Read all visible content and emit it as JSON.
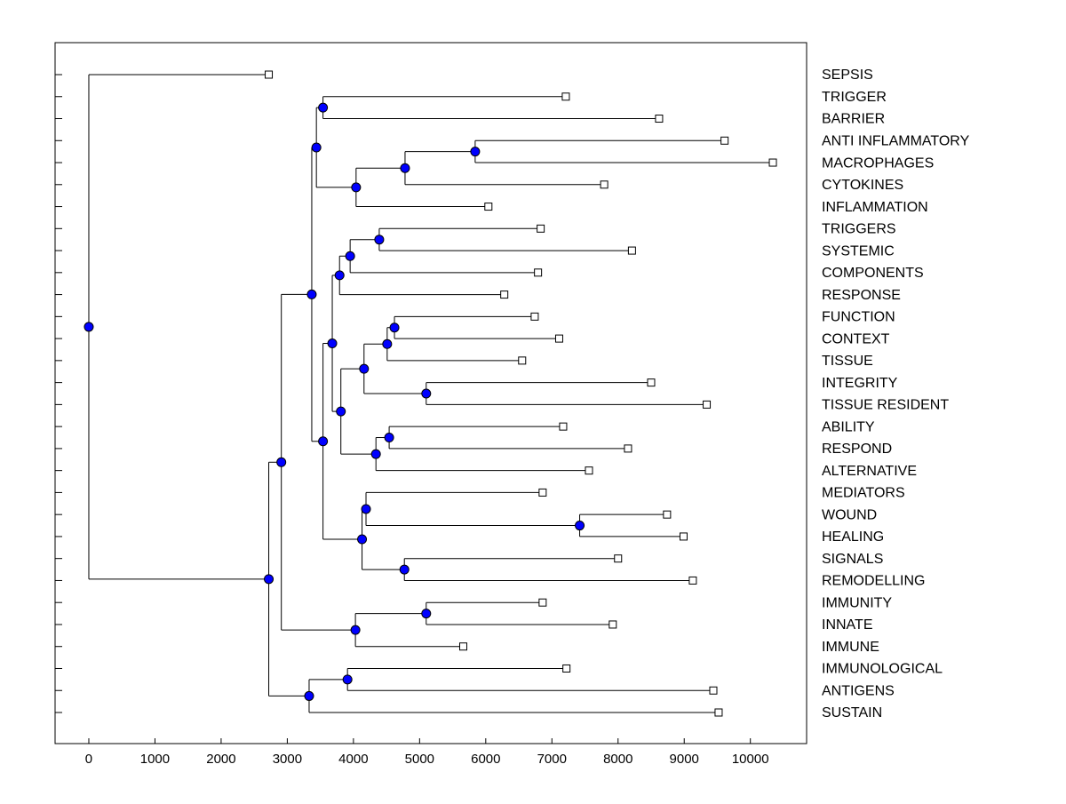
{
  "chart_data": {
    "type": "dendrogram",
    "xlim": [
      -510,
      10850
    ],
    "xticks": [
      0,
      1000,
      2000,
      3000,
      4000,
      5000,
      6000,
      7000,
      8000,
      9000,
      10000
    ],
    "node_color": "#0000ff",
    "leaf_color": "#ffffff",
    "tree": {
      "value": 0,
      "children": [
        {
          "label": "SEPSIS",
          "value": 2720
        },
        {
          "value": 2720,
          "children": [
            {
              "value": 2910,
              "children": [
                {
                  "value": 3370,
                  "children": [
                    {
                      "value": 3440,
                      "children": [
                        {
                          "value": 3540,
                          "children": [
                            {
                              "label": "TRIGGER",
                              "value": 7210
                            },
                            {
                              "label": "BARRIER",
                              "value": 8620
                            }
                          ]
                        },
                        {
                          "value": 4040,
                          "children": [
                            {
                              "value": 4780,
                              "children": [
                                {
                                  "value": 5840,
                                  "children": [
                                    {
                                      "label": "ANTI INFLAMMATORY",
                                      "value": 9610
                                    },
                                    {
                                      "label": "MACROPHAGES",
                                      "value": 10340
                                    }
                                  ]
                                },
                                {
                                  "label": "CYTOKINES",
                                  "value": 7790
                                }
                              ]
                            },
                            {
                              "label": "INFLAMMATION",
                              "value": 6040
                            }
                          ]
                        }
                      ]
                    },
                    {
                      "value": 3540,
                      "children": [
                        {
                          "value": 3680,
                          "children": [
                            {
                              "value": 3790,
                              "children": [
                                {
                                  "value": 3950,
                                  "children": [
                                    {
                                      "value": 4390,
                                      "children": [
                                        {
                                          "label": "TRIGGERS",
                                          "value": 6830
                                        },
                                        {
                                          "label": "SYSTEMIC",
                                          "value": 8210
                                        }
                                      ]
                                    },
                                    {
                                      "label": "COMPONENTS",
                                      "value": 6790
                                    }
                                  ]
                                },
                                {
                                  "label": "RESPONSE",
                                  "value": 6280
                                }
                              ]
                            },
                            {
                              "value": 3810,
                              "children": [
                                {
                                  "value": 4160,
                                  "children": [
                                    {
                                      "value": 4510,
                                      "children": [
                                        {
                                          "value": 4620,
                                          "children": [
                                            {
                                              "label": "FUNCTION",
                                              "value": 6740
                                            },
                                            {
                                              "label": "CONTEXT",
                                              "value": 7110
                                            }
                                          ]
                                        },
                                        {
                                          "label": "TISSUE",
                                          "value": 6550
                                        }
                                      ]
                                    },
                                    {
                                      "value": 5100,
                                      "children": [
                                        {
                                          "label": "INTEGRITY",
                                          "value": 8500
                                        },
                                        {
                                          "label": "TISSUE RESIDENT",
                                          "value": 9340
                                        }
                                      ]
                                    }
                                  ]
                                },
                                {
                                  "value": 4340,
                                  "children": [
                                    {
                                      "value": 4540,
                                      "children": [
                                        {
                                          "label": "ABILITY",
                                          "value": 7170
                                        },
                                        {
                                          "label": "RESPOND",
                                          "value": 8150
                                        }
                                      ]
                                    },
                                    {
                                      "label": "ALTERNATIVE",
                                      "value": 7560
                                    }
                                  ]
                                }
                              ]
                            }
                          ]
                        },
                        {
                          "value": 4130,
                          "children": [
                            {
                              "value": 4190,
                              "children": [
                                {
                                  "label": "MEDIATORS",
                                  "value": 6860
                                },
                                {
                                  "value": 7420,
                                  "children": [
                                    {
                                      "label": "WOUND",
                                      "value": 8740
                                    },
                                    {
                                      "label": "HEALING",
                                      "value": 8990
                                    }
                                  ]
                                }
                              ]
                            },
                            {
                              "value": 4770,
                              "children": [
                                {
                                  "label": "SIGNALS",
                                  "value": 8000
                                },
                                {
                                  "label": "REMODELLING",
                                  "value": 9130
                                }
                              ]
                            }
                          ]
                        }
                      ]
                    }
                  ]
                },
                {
                  "value": 4030,
                  "children": [
                    {
                      "value": 5100,
                      "children": [
                        {
                          "label": "IMMUNITY",
                          "value": 6860
                        },
                        {
                          "label": "INNATE",
                          "value": 7920
                        }
                      ]
                    },
                    {
                      "label": "IMMUNE",
                      "value": 5660
                    }
                  ]
                }
              ]
            },
            {
              "value": 3330,
              "children": [
                {
                  "value": 3910,
                  "children": [
                    {
                      "label": "IMMUNOLOGICAL",
                      "value": 7220
                    },
                    {
                      "label": "ANTIGENS",
                      "value": 9440
                    }
                  ]
                },
                {
                  "label": "SUSTAIN",
                  "value": 9520
                }
              ]
            }
          ]
        }
      ]
    }
  }
}
